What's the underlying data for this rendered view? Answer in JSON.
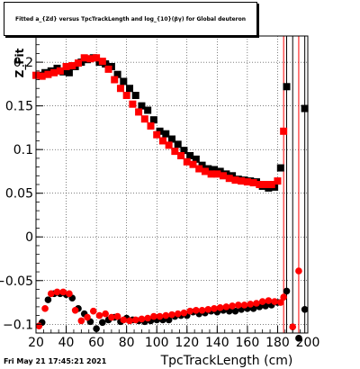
{
  "title_box": {
    "text": "Fitted a_{Zd} versus TpcTrackLength and log_{10}(βγ) for Global deuteron"
  },
  "timestamp": "Fri May 21 17:45:21 2021",
  "chart_data": {
    "type": "scatter",
    "xlabel": "TpcTrackLength (cm)",
    "ylabel": "Z_Fit",
    "xlim": [
      20,
      200
    ],
    "ylim": [
      -0.11,
      0.23
    ],
    "xticks": [
      20,
      40,
      60,
      80,
      100,
      120,
      140,
      160,
      180,
      200
    ],
    "yticks": [
      -0.1,
      -0.05,
      0,
      0.05,
      0.1,
      0.15,
      0.2
    ],
    "xtick_labels": [
      "20",
      "40",
      "60",
      "80",
      "100",
      "120",
      "140",
      "160",
      "180",
      "200"
    ],
    "ytick_labels": [
      "−0.1",
      "−0.05",
      "0",
      "0.05",
      "0.1",
      "0.15",
      "0.2"
    ],
    "grid": true,
    "colors": {
      "black_series": "#000000",
      "red_series": "#ff0000"
    },
    "series": [
      {
        "color": "black",
        "upper": {
          "x": [
            22,
            26,
            30,
            34,
            38,
            42,
            46,
            50,
            54,
            58,
            62,
            66,
            70,
            74,
            78,
            82,
            86,
            90,
            94,
            98,
            102,
            106,
            110,
            114,
            118,
            122,
            126,
            130,
            134,
            138,
            142,
            146,
            150,
            154,
            158,
            162,
            166,
            170,
            174,
            178
          ],
          "y": [
            0.185,
            0.188,
            0.19,
            0.193,
            0.189,
            0.188,
            0.195,
            0.2,
            0.203,
            0.205,
            0.2,
            0.198,
            0.195,
            0.186,
            0.178,
            0.17,
            0.162,
            0.15,
            0.145,
            0.134,
            0.121,
            0.118,
            0.112,
            0.106,
            0.099,
            0.093,
            0.089,
            0.082,
            0.078,
            0.077,
            0.075,
            0.072,
            0.07,
            0.066,
            0.065,
            0.064,
            0.063,
            0.058,
            0.056,
            0.057
          ]
        },
        "lower": {
          "x": [
            24,
            28,
            32,
            36,
            40,
            44,
            48,
            52,
            56,
            60,
            64,
            68,
            72,
            76,
            80,
            84,
            88,
            92,
            96,
            100,
            104,
            108,
            112,
            116,
            120,
            124,
            128,
            132,
            136,
            140,
            144,
            148,
            152,
            156,
            160,
            164,
            168,
            172,
            176,
            180
          ],
          "y": [
            -0.098,
            -0.072,
            -0.065,
            -0.065,
            -0.066,
            -0.07,
            -0.082,
            -0.088,
            -0.097,
            -0.105,
            -0.098,
            -0.095,
            -0.092,
            -0.097,
            -0.093,
            -0.095,
            -0.096,
            -0.097,
            -0.096,
            -0.095,
            -0.095,
            -0.095,
            -0.091,
            -0.09,
            -0.09,
            -0.086,
            -0.088,
            -0.087,
            -0.085,
            -0.086,
            -0.084,
            -0.085,
            -0.085,
            -0.083,
            -0.082,
            -0.082,
            -0.08,
            -0.079,
            -0.078,
            -0.075
          ]
        },
        "edge_points": [
          {
            "x": 182,
            "y": 0.079
          },
          {
            "x": 186,
            "y": 0.172
          },
          {
            "x": 186,
            "y": -0.062
          },
          {
            "x": 198,
            "y": 0.147
          },
          {
            "x": 198,
            "y": -0.083
          },
          {
            "x": 194,
            "y": -0.116
          }
        ],
        "vertical_lines_x": [
          186,
          190,
          198
        ]
      },
      {
        "color": "red",
        "upper": {
          "x": [
            20,
            24,
            28,
            32,
            36,
            40,
            44,
            48,
            52,
            56,
            60,
            64,
            68,
            72,
            76,
            80,
            84,
            88,
            92,
            96,
            100,
            104,
            108,
            112,
            116,
            120,
            124,
            128,
            132,
            136,
            140,
            144,
            148,
            152,
            156,
            160,
            164,
            168,
            172,
            176,
            180
          ],
          "y": [
            0.185,
            0.184,
            0.186,
            0.188,
            0.19,
            0.195,
            0.196,
            0.199,
            0.205,
            0.204,
            0.205,
            0.201,
            0.192,
            0.18,
            0.17,
            0.162,
            0.152,
            0.143,
            0.135,
            0.127,
            0.117,
            0.11,
            0.105,
            0.098,
            0.093,
            0.086,
            0.083,
            0.078,
            0.075,
            0.072,
            0.072,
            0.07,
            0.067,
            0.065,
            0.064,
            0.063,
            0.062,
            0.06,
            0.06,
            0.06,
            0.064
          ]
        },
        "lower": {
          "x": [
            22,
            26,
            30,
            34,
            38,
            42,
            46,
            50,
            54,
            58,
            62,
            66,
            70,
            74,
            78,
            82,
            86,
            90,
            94,
            98,
            102,
            106,
            110,
            114,
            118,
            122,
            126,
            130,
            134,
            138,
            142,
            146,
            150,
            154,
            158,
            162,
            166,
            170,
            174,
            178,
            182
          ],
          "y": [
            -0.102,
            -0.082,
            -0.065,
            -0.063,
            -0.063,
            -0.065,
            -0.084,
            -0.096,
            -0.092,
            -0.085,
            -0.09,
            -0.088,
            -0.092,
            -0.091,
            -0.095,
            -0.096,
            -0.095,
            -0.094,
            -0.093,
            -0.091,
            -0.091,
            -0.09,
            -0.089,
            -0.088,
            -0.087,
            -0.085,
            -0.084,
            -0.084,
            -0.083,
            -0.082,
            -0.081,
            -0.08,
            -0.079,
            -0.078,
            -0.078,
            -0.077,
            -0.076,
            -0.074,
            -0.073,
            -0.074,
            -0.075
          ]
        },
        "edge_points": [
          {
            "x": 184,
            "y": 0.121
          },
          {
            "x": 184,
            "y": -0.069
          },
          {
            "x": 190,
            "y": -0.103
          },
          {
            "x": 194,
            "y": -0.039
          }
        ],
        "vertical_lines_x": [
          184,
          194
        ]
      }
    ]
  }
}
